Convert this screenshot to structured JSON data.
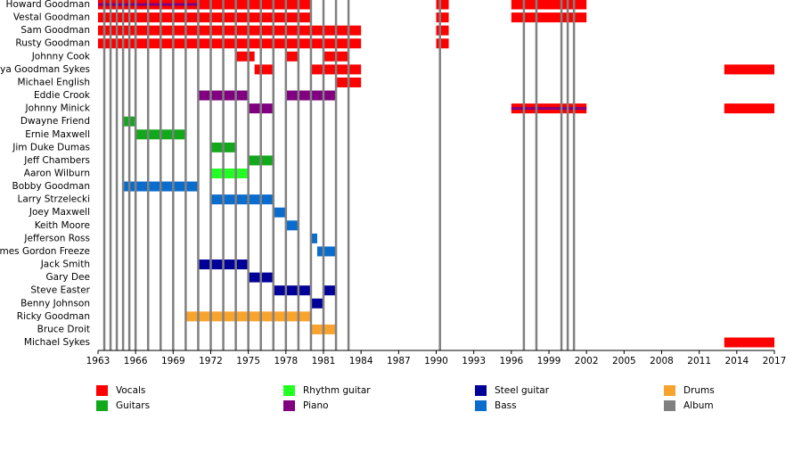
{
  "chart_data": {
    "type": "timeline",
    "categories": [
      "Howard Goodman",
      "Vestal Goodman",
      "Sam Goodman",
      "Rusty Goodman",
      "Johnny Cook",
      "Tanya Goodman Sykes",
      "Michael English",
      "Eddie Crook",
      "Johnny Minick",
      "Dwayne Friend",
      "Ernie Maxwell",
      "Jim Duke Dumas",
      "Jeff Chambers",
      "Aaron Wilburn",
      "Bobby Goodman",
      "Larry Strzelecki",
      "Joey Maxwell",
      "Keith Moore",
      "Jefferson Ross",
      "James Gordon Freeze",
      "Jack Smith",
      "Gary Dee",
      "Steve Easter",
      "Benny Johnson",
      "Ricky Goodman",
      "Bruce Droit",
      "Michael Sykes"
    ],
    "series": [
      {
        "name": "Vocals",
        "color": "#ff0000",
        "values": [
          [
            [
              1963,
              1980
            ],
            [
              1990,
              1991
            ],
            [
              1996,
              2002
            ]
          ],
          [
            [
              1963,
              1980
            ],
            [
              1990,
              1991
            ],
            [
              1996,
              2002
            ]
          ],
          [
            [
              1963,
              1984
            ],
            [
              1990,
              1991
            ]
          ],
          [
            [
              1963,
              1984
            ],
            [
              1990,
              1991
            ]
          ],
          [
            [
              1974,
              1975.5
            ],
            [
              1978,
              1979
            ],
            [
              1981,
              1983
            ]
          ],
          [
            [
              1975.5,
              1977
            ],
            [
              1980,
              1984
            ],
            [
              2013,
              2017
            ]
          ],
          [
            [
              1982,
              1984
            ]
          ],
          [],
          [
            [
              1996,
              2002
            ],
            [
              2013,
              2017
            ]
          ],
          [],
          [],
          [],
          [],
          [],
          [],
          [],
          [],
          [],
          [],
          [],
          [],
          [],
          [],
          [],
          [],
          [],
          [
            [
              2013,
              2017
            ]
          ]
        ]
      },
      {
        "name": "Guitars",
        "color": "#12a81b",
        "values": [
          [],
          [],
          [],
          [],
          [],
          [],
          [],
          [],
          [],
          [
            [
              1965,
              1966
            ]
          ],
          [
            [
              1966,
              1970
            ]
          ],
          [
            [
              1972,
              1974
            ]
          ],
          [
            [
              1975,
              1977
            ]
          ],
          [],
          [],
          [],
          [],
          [],
          [],
          [],
          [],
          [],
          [],
          [],
          [],
          [],
          []
        ]
      },
      {
        "name": "Rhythm guitar",
        "color": "#22ff22",
        "values": [
          [],
          [],
          [],
          [],
          [],
          [],
          [],
          [],
          [],
          [],
          [],
          [],
          [],
          [
            [
              1972,
              1975
            ]
          ],
          [],
          [],
          [],
          [],
          [],
          [],
          [],
          [],
          [],
          [],
          [],
          [],
          []
        ]
      },
      {
        "name": "Piano",
        "color": "#800080",
        "values": [
          [
            [
              1963,
              1971
            ]
          ],
          [],
          [],
          [],
          [],
          [],
          [],
          [
            [
              1971,
              1975
            ],
            [
              1978,
              1982
            ]
          ],
          [
            [
              1975,
              1977
            ],
            [
              1996,
              2002
            ]
          ],
          [],
          [],
          [],
          [],
          [],
          [],
          [],
          [],
          [],
          [],
          [],
          [],
          [],
          [],
          [],
          [],
          [],
          []
        ]
      },
      {
        "name": "Steel guitar",
        "color": "#000099",
        "values": [
          [],
          [],
          [],
          [],
          [],
          [],
          [],
          [],
          [],
          [],
          [],
          [],
          [],
          [],
          [],
          [],
          [],
          [],
          [],
          [],
          [
            [
              1971,
              1975
            ]
          ],
          [
            [
              1975,
              1977
            ]
          ],
          [
            [
              1977,
              1980
            ],
            [
              1981,
              1982
            ]
          ],
          [
            [
              1980,
              1981
            ]
          ],
          [],
          [],
          []
        ]
      },
      {
        "name": "Bass",
        "color": "#0a6ccc",
        "values": [
          [],
          [],
          [],
          [],
          [],
          [],
          [],
          [],
          [],
          [],
          [],
          [],
          [],
          [],
          [
            [
              1965,
              1971
            ]
          ],
          [
            [
              1972,
              1977
            ]
          ],
          [
            [
              1977,
              1978
            ]
          ],
          [
            [
              1978,
              1979
            ]
          ],
          [
            [
              1980,
              1980.5
            ]
          ],
          [
            [
              1980.5,
              1982
            ]
          ],
          [],
          [],
          [],
          [],
          [],
          [],
          []
        ]
      },
      {
        "name": "Drums",
        "color": "#f9a32f",
        "values": [
          [],
          [],
          [],
          [],
          [],
          [],
          [],
          [],
          [],
          [],
          [],
          [],
          [],
          [],
          [],
          [],
          [],
          [],
          [],
          [],
          [],
          [],
          [],
          [],
          [
            [
              1970,
              1980
            ]
          ],
          [
            [
              1980,
              1982
            ]
          ],
          []
        ]
      }
    ],
    "album": {
      "name": "Album",
      "color": "#808080",
      "values": [
        1963.5,
        1964,
        1964.5,
        1965,
        1965.5,
        1966,
        1967,
        1968,
        1969,
        1970,
        1971,
        1972,
        1973,
        1974,
        1975,
        1976,
        1977,
        1978,
        1979,
        1980,
        1981,
        1982,
        1983,
        1990.3,
        1997,
        1998,
        2000,
        2000.5,
        2001
      ]
    },
    "xlim": [
      1963,
      2017
    ],
    "xticks": [
      1963,
      1966,
      1969,
      1972,
      1975,
      1978,
      1981,
      1984,
      1987,
      1990,
      1993,
      1996,
      1999,
      2002,
      2005,
      2008,
      2011,
      2014,
      2017
    ]
  }
}
